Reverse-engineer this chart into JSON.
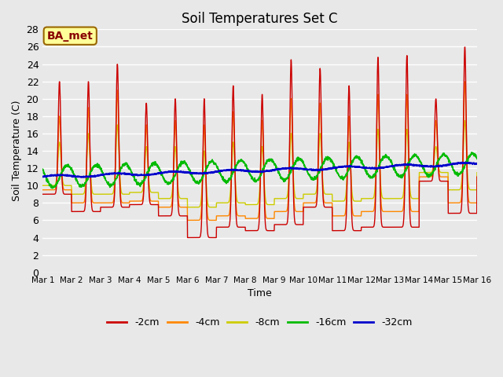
{
  "title": "Soil Temperatures Set C",
  "xlabel": "Time",
  "ylabel": "Soil Temperature (C)",
  "ylim": [
    0,
    28
  ],
  "yticks": [
    0,
    2,
    4,
    6,
    8,
    10,
    12,
    14,
    16,
    18,
    20,
    22,
    24,
    26,
    28
  ],
  "xtick_labels": [
    "Mar 1",
    "Mar 2",
    "Mar 3",
    "Mar 4",
    "Mar 5",
    "Mar 6",
    "Mar 7",
    "Mar 8",
    "Mar 9",
    "Mar 10",
    "Mar 11",
    "Mar 12",
    "Mar 13",
    "Mar 14",
    "Mar 15",
    "Mar 16"
  ],
  "legend_labels": [
    "-2cm",
    "-4cm",
    "-8cm",
    "-16cm",
    "-32cm"
  ],
  "legend_colors": [
    "#cc0000",
    "#ff8800",
    "#cccc00",
    "#00bb00",
    "#0000cc"
  ],
  "fig_facecolor": "#e8e8e8",
  "ax_facecolor": "#e8e8e8",
  "grid_color": "#ffffff",
  "annotation_text": "BA_met",
  "annotation_bg": "#ffff99",
  "annotation_border": "#996600",
  "figsize": [
    6.4,
    4.8
  ],
  "dpi": 100
}
